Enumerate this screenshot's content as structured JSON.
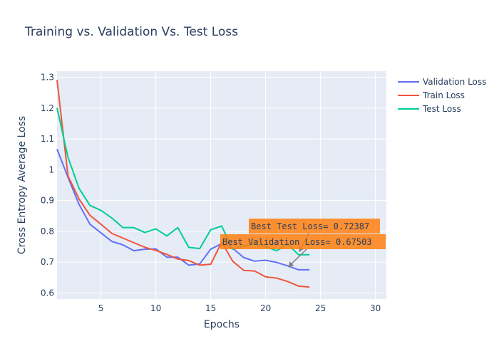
{
  "chart_data": {
    "type": "line",
    "title": "Training vs. Validation Vs. Test Loss",
    "xlabel": "Epochs",
    "ylabel": "Cross Entropy Average Loss",
    "xlim": [
      1,
      31
    ],
    "ylim": [
      0.58,
      1.32
    ],
    "x_ticks": [
      5,
      10,
      15,
      20,
      25,
      30
    ],
    "y_ticks": [
      0.6,
      0.7,
      0.8,
      0.9,
      1,
      1.1,
      1.2,
      1.3
    ],
    "grid": true,
    "legend_position": "top-right, outside plot",
    "x": [
      1,
      2,
      3,
      4,
      5,
      6,
      7,
      8,
      9,
      10,
      11,
      12,
      13,
      14,
      15,
      16,
      17,
      18,
      19,
      20,
      21,
      22,
      23,
      24
    ],
    "series": [
      {
        "name": "Validation Loss",
        "color": "#636efa",
        "values": [
          1.067,
          0.975,
          0.888,
          0.823,
          0.795,
          0.767,
          0.756,
          0.737,
          0.742,
          0.743,
          0.716,
          0.716,
          0.69,
          0.694,
          0.742,
          0.76,
          0.745,
          0.715,
          0.703,
          0.706,
          0.699,
          0.688,
          0.675,
          0.675
        ]
      },
      {
        "name": "Train Loss",
        "color": "#ef553b",
        "values": [
          1.292,
          0.98,
          0.905,
          0.852,
          0.823,
          0.793,
          0.778,
          0.763,
          0.748,
          0.738,
          0.725,
          0.71,
          0.705,
          0.69,
          0.693,
          0.765,
          0.703,
          0.673,
          0.671,
          0.652,
          0.648,
          0.637,
          0.622,
          0.619
        ]
      },
      {
        "name": "Test Loss",
        "color": "#00cc96",
        "values": [
          1.201,
          1.04,
          0.94,
          0.884,
          0.868,
          0.843,
          0.812,
          0.812,
          0.796,
          0.808,
          0.785,
          0.812,
          0.748,
          0.744,
          0.805,
          0.817,
          0.742,
          0.752,
          0.759,
          0.75,
          0.737,
          0.758,
          0.724,
          0.724
        ]
      }
    ],
    "annotations": [
      {
        "text": "Best Test Loss= 0.72387",
        "x": 23,
        "y": 0.724
      },
      {
        "text": "Best Validation Loss= 0.67503",
        "x": 22,
        "y": 0.675
      }
    ]
  }
}
